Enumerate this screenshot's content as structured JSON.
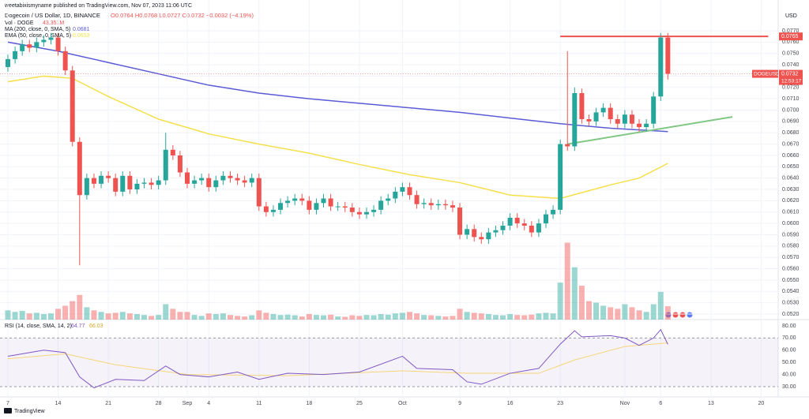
{
  "header": {
    "published": "weetabixismyname published on TradingView.com, Nov 07, 2023 11:06 UTC",
    "footer": "TradingView"
  },
  "chart_data": {
    "type": "candlestick",
    "legend": {
      "symbol": "Dogecoin / US Dollar, 1D, BINANCE",
      "ohlc": "O0.0764 H0.0768 L0.0727 C0.0732 −0.0032 (−4.19%)",
      "volume_name": "Vol · DOGE",
      "volume_label": "43.351M"
    },
    "y_unit": "USD",
    "up_color": "#26a69a",
    "down_color": "#ef5350",
    "dates": [
      "Aug 7",
      "Aug 8",
      "Aug 9",
      "Aug 10",
      "Aug 11",
      "Aug 12",
      "Aug 13",
      "Aug 14",
      "Aug 15",
      "Aug 16",
      "Aug 17",
      "Aug 18",
      "Aug 19",
      "Aug 20",
      "Aug 21",
      "Aug 22",
      "Aug 23",
      "Aug 24",
      "Aug 25",
      "Aug 26",
      "Aug 27",
      "Aug 28",
      "Aug 29",
      "Aug 30",
      "Aug 31",
      "Sep 1",
      "Sep 2",
      "Sep 3",
      "Sep 4",
      "Sep 5",
      "Sep 6",
      "Sep 7",
      "Sep 8",
      "Sep 9",
      "Sep 10",
      "Sep 11",
      "Sep 12",
      "Sep 13",
      "Sep 14",
      "Sep 15",
      "Sep 16",
      "Sep 17",
      "Sep 18",
      "Sep 19",
      "Sep 20",
      "Sep 21",
      "Sep 22",
      "Sep 23",
      "Sep 24",
      "Sep 25",
      "Sep 26",
      "Sep 27",
      "Sep 28",
      "Sep 29",
      "Sep 30",
      "Oct 1",
      "Oct 2",
      "Oct 3",
      "Oct 4",
      "Oct 5",
      "Oct 6",
      "Oct 7",
      "Oct 8",
      "Oct 9",
      "Oct 10",
      "Oct 11",
      "Oct 12",
      "Oct 13",
      "Oct 14",
      "Oct 15",
      "Oct 16",
      "Oct 17",
      "Oct 18",
      "Oct 19",
      "Oct 20",
      "Oct 21",
      "Oct 22",
      "Oct 23",
      "Oct 24",
      "Oct 25",
      "Oct 26",
      "Oct 27",
      "Oct 28",
      "Oct 29",
      "Oct 30",
      "Oct 31",
      "Nov 1",
      "Nov 2",
      "Nov 3",
      "Nov 4",
      "Nov 5",
      "Nov 6",
      "Nov 7"
    ],
    "open": [
      0.0738,
      0.0745,
      0.0752,
      0.0758,
      0.0755,
      0.076,
      0.0762,
      0.0764,
      0.0752,
      0.0735,
      0.0672,
      0.0625,
      0.064,
      0.0635,
      0.0642,
      0.064,
      0.0628,
      0.0642,
      0.063,
      0.0635,
      0.0636,
      0.0634,
      0.0638,
      0.0665,
      0.066,
      0.0645,
      0.0635,
      0.0638,
      0.064,
      0.0632,
      0.0638,
      0.0642,
      0.064,
      0.0638,
      0.0636,
      0.064,
      0.0615,
      0.061,
      0.0612,
      0.0618,
      0.062,
      0.0622,
      0.062,
      0.0612,
      0.0618,
      0.0622,
      0.0615,
      0.0615,
      0.0614,
      0.061,
      0.0608,
      0.061,
      0.0612,
      0.062,
      0.0622,
      0.0628,
      0.0632,
      0.0625,
      0.0617,
      0.0618,
      0.0616,
      0.0617,
      0.0616,
      0.0614,
      0.059,
      0.0595,
      0.0588,
      0.0586,
      0.0592,
      0.0594,
      0.0598,
      0.0605,
      0.06,
      0.0598,
      0.0592,
      0.06,
      0.0608,
      0.0612,
      0.067,
      0.0668,
      0.0715,
      0.0692,
      0.069,
      0.0698,
      0.0702,
      0.0692,
      0.0688,
      0.0696,
      0.0688,
      0.0685,
      0.0688,
      0.0712,
      0.0764
    ],
    "high": [
      0.0749,
      0.0756,
      0.0762,
      0.0762,
      0.0764,
      0.0766,
      0.0768,
      0.0768,
      0.0756,
      0.0739,
      0.0676,
      0.0644,
      0.0644,
      0.0646,
      0.0646,
      0.0644,
      0.0646,
      0.0646,
      0.0639,
      0.064,
      0.064,
      0.0642,
      0.068,
      0.0669,
      0.0664,
      0.0649,
      0.0642,
      0.0644,
      0.0644,
      0.0642,
      0.0646,
      0.0646,
      0.0644,
      0.0642,
      0.0644,
      0.0644,
      0.0619,
      0.0616,
      0.0622,
      0.0624,
      0.0626,
      0.0626,
      0.0624,
      0.0622,
      0.0626,
      0.0626,
      0.0619,
      0.0619,
      0.0618,
      0.0614,
      0.0614,
      0.0616,
      0.0624,
      0.0626,
      0.0632,
      0.0636,
      0.0636,
      0.0629,
      0.0622,
      0.0622,
      0.0621,
      0.0621,
      0.062,
      0.0618,
      0.0599,
      0.0599,
      0.0592,
      0.0596,
      0.0598,
      0.0602,
      0.0609,
      0.0609,
      0.0604,
      0.0602,
      0.0604,
      0.0612,
      0.0616,
      0.0674,
      0.0752,
      0.072,
      0.0719,
      0.0696,
      0.0702,
      0.0706,
      0.0706,
      0.0696,
      0.07,
      0.07,
      0.0692,
      0.0692,
      0.0716,
      0.0768,
      0.0768
    ],
    "low": [
      0.0734,
      0.0741,
      0.0748,
      0.0751,
      0.0751,
      0.0756,
      0.0758,
      0.0748,
      0.0731,
      0.0668,
      0.0563,
      0.0621,
      0.0631,
      0.0631,
      0.0636,
      0.0624,
      0.0624,
      0.0626,
      0.0626,
      0.0631,
      0.063,
      0.063,
      0.0634,
      0.0656,
      0.0641,
      0.0631,
      0.0631,
      0.0634,
      0.0628,
      0.0628,
      0.0634,
      0.0636,
      0.0634,
      0.0632,
      0.0632,
      0.0611,
      0.0606,
      0.0606,
      0.0608,
      0.0614,
      0.0616,
      0.0616,
      0.0608,
      0.0608,
      0.0614,
      0.0611,
      0.0611,
      0.061,
      0.0606,
      0.0604,
      0.0604,
      0.0606,
      0.0608,
      0.0616,
      0.0618,
      0.0624,
      0.0621,
      0.0613,
      0.0613,
      0.0612,
      0.0612,
      0.0612,
      0.061,
      0.0586,
      0.0586,
      0.0584,
      0.0582,
      0.0582,
      0.0588,
      0.059,
      0.0594,
      0.0596,
      0.0594,
      0.0588,
      0.0588,
      0.0596,
      0.0604,
      0.0608,
      0.0664,
      0.0664,
      0.0688,
      0.0686,
      0.0686,
      0.0694,
      0.0688,
      0.0684,
      0.0684,
      0.0684,
      0.0681,
      0.0681,
      0.0684,
      0.0708,
      0.0727
    ],
    "close": [
      0.0745,
      0.0752,
      0.0758,
      0.0755,
      0.076,
      0.0762,
      0.0764,
      0.0752,
      0.0735,
      0.0672,
      0.0625,
      0.064,
      0.0635,
      0.0642,
      0.064,
      0.0628,
      0.0642,
      0.063,
      0.0635,
      0.0636,
      0.0634,
      0.0638,
      0.0665,
      0.066,
      0.0645,
      0.0635,
      0.0638,
      0.064,
      0.0632,
      0.0638,
      0.0642,
      0.064,
      0.0638,
      0.0636,
      0.064,
      0.0615,
      0.061,
      0.0612,
      0.0618,
      0.062,
      0.0622,
      0.062,
      0.0612,
      0.0618,
      0.0622,
      0.0615,
      0.0615,
      0.0614,
      0.061,
      0.0608,
      0.061,
      0.0612,
      0.062,
      0.0622,
      0.0628,
      0.0632,
      0.0625,
      0.0617,
      0.0618,
      0.0616,
      0.0617,
      0.0616,
      0.0614,
      0.059,
      0.0595,
      0.0588,
      0.0586,
      0.0592,
      0.0594,
      0.0598,
      0.0605,
      0.06,
      0.0598,
      0.0592,
      0.06,
      0.0608,
      0.0612,
      0.067,
      0.0668,
      0.0715,
      0.0692,
      0.069,
      0.0698,
      0.0702,
      0.0692,
      0.0688,
      0.0696,
      0.0688,
      0.0685,
      0.0688,
      0.0712,
      0.0764,
      0.0732
    ],
    "volume": [
      30,
      25,
      28,
      20,
      22,
      18,
      20,
      35,
      45,
      60,
      80,
      40,
      30,
      25,
      20,
      22,
      25,
      20,
      18,
      15,
      12,
      15,
      50,
      35,
      25,
      25,
      15,
      12,
      20,
      18,
      20,
      15,
      12,
      10,
      14,
      30,
      22,
      18,
      15,
      16,
      14,
      10,
      18,
      15,
      14,
      16,
      10,
      9,
      14,
      12,
      15,
      14,
      18,
      16,
      20,
      22,
      25,
      20,
      15,
      14,
      12,
      10,
      12,
      35,
      25,
      22,
      20,
      18,
      15,
      14,
      18,
      15,
      14,
      16,
      20,
      22,
      20,
      120,
      250,
      170,
      110,
      60,
      55,
      45,
      40,
      35,
      50,
      40,
      30,
      25,
      50,
      90,
      43.351
    ],
    "ylim": [
      0.052,
      0.077
    ],
    "yticks": [
      {
        "value": 0.077,
        "label": "0.0770"
      },
      {
        "value": 0.076,
        "label": "0.0760"
      },
      {
        "value": 0.075,
        "label": "0.0750"
      },
      {
        "value": 0.074,
        "label": "0.0740"
      },
      {
        "value": 0.073,
        "label": "0.0730"
      },
      {
        "value": 0.072,
        "label": "0.0720"
      },
      {
        "value": 0.071,
        "label": "0.0710"
      },
      {
        "value": 0.07,
        "label": "0.0700"
      },
      {
        "value": 0.069,
        "label": "0.0690"
      },
      {
        "value": 0.068,
        "label": "0.0680"
      },
      {
        "value": 0.067,
        "label": "0.0670"
      },
      {
        "value": 0.066,
        "label": "0.0660"
      },
      {
        "value": 0.065,
        "label": "0.0650"
      },
      {
        "value": 0.064,
        "label": "0.0640"
      },
      {
        "value": 0.063,
        "label": "0.0630"
      },
      {
        "value": 0.062,
        "label": "0.0620"
      },
      {
        "value": 0.061,
        "label": "0.0610"
      },
      {
        "value": 0.06,
        "label": "0.0600"
      },
      {
        "value": 0.059,
        "label": "0.0590"
      },
      {
        "value": 0.058,
        "label": "0.0580"
      },
      {
        "value": 0.057,
        "label": "0.0570"
      },
      {
        "value": 0.056,
        "label": "0.0560"
      },
      {
        "value": 0.055,
        "label": "0.0550"
      },
      {
        "value": 0.054,
        "label": "0.0540"
      },
      {
        "value": 0.053,
        "label": "0.0530"
      },
      {
        "value": 0.052,
        "label": "0.0520"
      }
    ],
    "xticks": [
      {
        "value": "Aug 7",
        "label": "7"
      },
      {
        "value": "Aug 14",
        "label": "14"
      },
      {
        "value": "Aug 21",
        "label": "21"
      },
      {
        "value": "Aug 28",
        "label": "28"
      },
      {
        "value": "Sep 1",
        "label": "Sep"
      },
      {
        "value": "Sep 4",
        "label": "4"
      },
      {
        "value": "Sep 11",
        "label": "11"
      },
      {
        "value": "Sep 18",
        "label": "18"
      },
      {
        "value": "Sep 25",
        "label": "25"
      },
      {
        "value": "Oct 1",
        "label": "Oct"
      },
      {
        "value": "Oct 9",
        "label": "9"
      },
      {
        "value": "Oct 16",
        "label": "16"
      },
      {
        "value": "Oct 23",
        "label": "23"
      },
      {
        "value": "Nov 1",
        "label": "Nov"
      },
      {
        "value": "Nov 6",
        "label": "6"
      },
      {
        "value": "Nov 13",
        "label": "13"
      },
      {
        "value": "Nov 20",
        "label": "20"
      }
    ],
    "overlays": [
      {
        "name": "MA (200, close, 0, SMA, 5)",
        "color": "#5b5bd6",
        "x": [
          "Aug 7",
          "Aug 14",
          "Aug 21",
          "Aug 28",
          "Sep 4",
          "Sep 11",
          "Sep 18",
          "Sep 25",
          "Oct 2",
          "Oct 9",
          "Oct 16",
          "Oct 23",
          "Oct 30",
          "Nov 7"
        ],
        "values": [
          0.076,
          0.0752,
          0.0742,
          0.0732,
          0.0722,
          0.0715,
          0.071,
          0.0706,
          0.0702,
          0.0698,
          0.0693,
          0.0688,
          0.0684,
          0.0681
        ]
      },
      {
        "name": "EMA (50, close, 0, SMA, 5)",
        "color": "#f5e04a",
        "x": [
          "Aug 7",
          "Aug 12",
          "Aug 16",
          "Aug 21",
          "Aug 28",
          "Sep 4",
          "Sep 11",
          "Sep 18",
          "Sep 25",
          "Oct 2",
          "Oct 9",
          "Oct 16",
          "Oct 23",
          "Oct 30",
          "Nov 3",
          "Nov 7"
        ],
        "values": [
          0.0725,
          0.073,
          0.0728,
          0.0712,
          0.0692,
          0.0679,
          0.067,
          0.0662,
          0.0652,
          0.0643,
          0.0636,
          0.0625,
          0.0622,
          0.0634,
          0.064,
          0.0653
        ]
      }
    ],
    "drawings": [
      {
        "color": "#ef5350",
        "x": [
          "Oct 23",
          "Nov 21"
        ],
        "values": [
          0.0765,
          0.0765
        ]
      },
      {
        "color": "#81c784",
        "x": [
          "Oct 24",
          "Nov 16"
        ],
        "values": [
          0.067,
          0.0694
        ]
      }
    ],
    "price_label": {
      "value": 0.0765,
      "color": "#ef5350"
    },
    "last_price": {
      "symbol": "DOGEUSD",
      "value": 0.0732,
      "countdown": "12:53:17"
    },
    "rsi": {
      "ylim": [
        30,
        80
      ],
      "yticks": [
        {
          "value": 80,
          "label": "80.00"
        },
        {
          "value": 70,
          "label": "70.00"
        },
        {
          "value": 60,
          "label": "60.00"
        },
        {
          "value": 50,
          "label": "50.00"
        },
        {
          "value": 40,
          "label": "40.00"
        },
        {
          "value": 30,
          "label": "30.00"
        }
      ],
      "band": [
        30,
        70
      ],
      "series": [
        {
          "name": "RSI (14, close, SMA, 14, 2)",
          "color": "#7e57c2",
          "x": [
            "Aug 7",
            "Aug 12",
            "Aug 15",
            "Aug 17",
            "Aug 19",
            "Aug 22",
            "Aug 26",
            "Aug 29",
            "Aug 31",
            "Sep 4",
            "Sep 8",
            "Sep 11",
            "Sep 15",
            "Sep 20",
            "Sep 25",
            "Oct 1",
            "Oct 3",
            "Oct 8",
            "Oct 10",
            "Oct 12",
            "Oct 16",
            "Oct 20",
            "Oct 23",
            "Oct 25",
            "Oct 26",
            "Oct 30",
            "Nov 1",
            "Nov 3",
            "Nov 5",
            "Nov 6",
            "Nov 7"
          ],
          "values": [
            55,
            60,
            58,
            38,
            29,
            36,
            35,
            47,
            40,
            38,
            42,
            36,
            41,
            40,
            42,
            55,
            45,
            44,
            34,
            32,
            41,
            45,
            65,
            76,
            71,
            72,
            70,
            64,
            70,
            77,
            64.77
          ]
        },
        {
          "color": "#f5d67a",
          "x": [
            "Aug 7",
            "Aug 15",
            "Aug 22",
            "Sep 1",
            "Sep 15",
            "Oct 1",
            "Oct 10",
            "Oct 20",
            "Oct 25",
            "Nov 1",
            "Nov 7"
          ],
          "values": [
            53,
            57,
            48,
            40,
            39,
            43,
            41,
            41,
            52,
            63,
            66.03
          ]
        }
      ]
    }
  }
}
